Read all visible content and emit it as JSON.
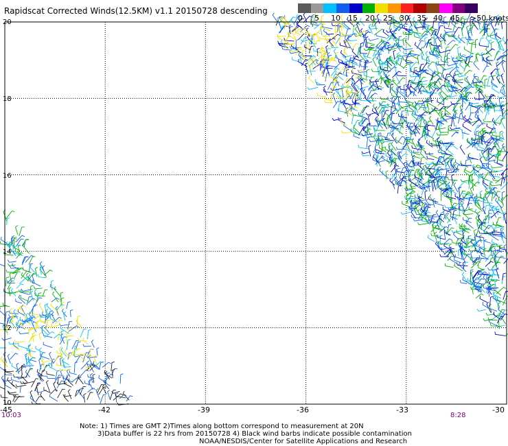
{
  "title": "Rapidscat Corrected Winds(12.5KM) v1.1 20150728 descending",
  "color_scale": {
    "colors": [
      "#5a5a5a",
      "#999999",
      "#00c0ff",
      "#1060f0",
      "#0000c8",
      "#00b000",
      "#f0e000",
      "#ff9600",
      "#ff2020",
      "#b00000",
      "#8b4513",
      "#ff00ff",
      "#800080",
      "#3a0060"
    ],
    "labels": [
      "0",
      "5",
      "10",
      "15",
      "20",
      "25",
      "30",
      "35",
      "40",
      "45",
      ">50 knots"
    ]
  },
  "map": {
    "lat_labels": [
      "20",
      "18",
      "16",
      "14",
      "12",
      "10"
    ],
    "lon_labels": [
      "-45",
      "-42",
      "-39",
      "-36",
      "-33",
      "-30"
    ],
    "times": {
      "left": "10:03",
      "right": "8:28"
    },
    "grid_lon": [
      -45,
      -42,
      -39,
      -36,
      -33,
      -30
    ],
    "grid_lat": [
      20,
      18,
      16,
      14,
      12,
      10
    ]
  },
  "notes": {
    "line1": "Note: 1) Times are GMT 2)Times along bottom correspond to measurement at 20N",
    "line2": "3)Data buffer is 22 hrs from 20150728 4) Black wind barbs indicate possible contamination",
    "line3": "NOAA/NESDIS/Center for Satellite Applications and Research"
  }
}
